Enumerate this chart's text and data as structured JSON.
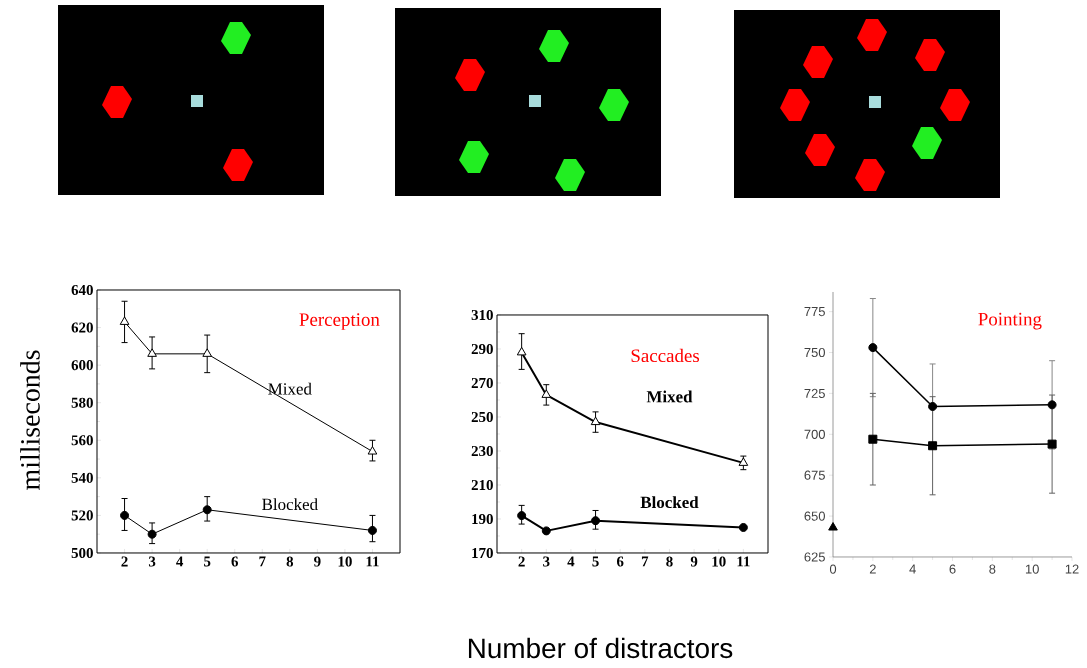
{
  "chart_data": [
    {
      "type": "line",
      "title": "Perception",
      "ylabel": "milliseconds",
      "x": [
        2,
        3,
        5,
        11
      ],
      "xlim": [
        1,
        12
      ],
      "ylim": [
        500,
        640
      ],
      "xticks": [
        2,
        3,
        4,
        5,
        6,
        7,
        8,
        9,
        10,
        11
      ],
      "yticks": [
        500,
        520,
        540,
        560,
        580,
        600,
        620,
        640
      ],
      "series": [
        {
          "name": "Mixed",
          "color": "#000000",
          "marker": "triangle",
          "values": [
            623,
            606,
            606,
            554
          ],
          "errors": [
            [
              612,
              634
            ],
            [
              598,
              615
            ],
            [
              596,
              616
            ],
            [
              549,
              560
            ]
          ]
        },
        {
          "name": "Blocked",
          "color": "#000000",
          "marker": "circle",
          "values": [
            520,
            510,
            523,
            512
          ],
          "errors": [
            [
              512,
              529
            ],
            [
              505,
              516
            ],
            [
              517,
              530
            ],
            [
              506,
              520
            ]
          ]
        }
      ]
    },
    {
      "type": "line",
      "title": "Saccades",
      "xlabel": "Number of distractors",
      "x": [
        2,
        3,
        5,
        11
      ],
      "xlim": [
        1,
        12
      ],
      "ylim": [
        170,
        310
      ],
      "xticks": [
        2,
        3,
        4,
        5,
        6,
        7,
        8,
        9,
        10,
        11
      ],
      "yticks": [
        170,
        190,
        210,
        230,
        250,
        270,
        290,
        310
      ],
      "series": [
        {
          "name": "Mixed",
          "color": "#000000",
          "marker": "triangle",
          "values": [
            288,
            263,
            247,
            223
          ],
          "errors": [
            [
              278,
              299
            ],
            [
              257,
              269
            ],
            [
              241,
              253
            ],
            [
              219,
              227
            ]
          ]
        },
        {
          "name": "Blocked",
          "color": "#000000",
          "marker": "circle",
          "values": [
            192,
            183,
            189,
            185
          ],
          "errors": [
            [
              187,
              198
            ],
            null,
            [
              184,
              195
            ],
            null
          ]
        }
      ]
    },
    {
      "type": "line",
      "title": "Pointing",
      "x": [
        2,
        5,
        11
      ],
      "xlim": [
        0,
        12
      ],
      "ylim": [
        625,
        787
      ],
      "xticks": [
        0,
        2,
        4,
        6,
        8,
        10,
        12
      ],
      "yticks": [
        625,
        650,
        675,
        700,
        725,
        750,
        775
      ],
      "series": [
        {
          "color": "#000000",
          "marker": "circle",
          "values": [
            753,
            717,
            718
          ],
          "errors": [
            [
              723,
              783
            ],
            [
              691,
              743
            ],
            [
              691,
              745
            ]
          ]
        },
        {
          "color": "#000000",
          "marker": "square",
          "values": [
            697,
            693,
            694
          ],
          "errors": [
            [
              669,
              725
            ],
            [
              663,
              723
            ],
            [
              664,
              724
            ]
          ]
        },
        {
          "type": "scatter",
          "color": "#000000",
          "marker": "triangle",
          "x": [
            0
          ],
          "values": [
            643
          ]
        }
      ]
    }
  ]
}
